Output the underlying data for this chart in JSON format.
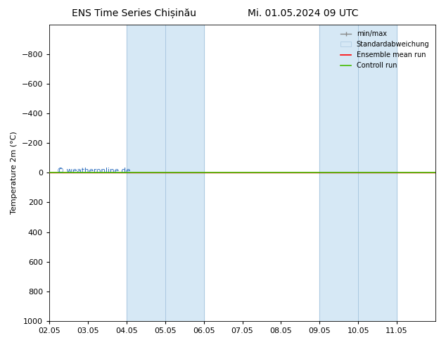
{
  "title_left": "ENS Time Series Chișinău",
  "title_right": "Mi. 01.05.2024 09 UTC",
  "ylabel": "Temperature 2m (°C)",
  "xlim": [
    0,
    10
  ],
  "ylim": [
    -1000,
    1000
  ],
  "yticks": [
    -800,
    -600,
    -400,
    -200,
    0,
    200,
    400,
    600,
    800,
    1000
  ],
  "xtick_labels": [
    "02.05",
    "03.05",
    "04.05",
    "05.05",
    "06.05",
    "07.05",
    "08.05",
    "09.05",
    "10.05",
    "11.05"
  ],
  "xtick_positions": [
    0,
    1,
    2,
    3,
    4,
    5,
    6,
    7,
    8,
    9
  ],
  "shade_regions": [
    [
      2.0,
      3.0
    ],
    [
      3.0,
      4.0
    ],
    [
      7.0,
      8.0
    ],
    [
      8.0,
      9.0
    ]
  ],
  "shade_colors": [
    "#d6e8f5",
    "#c0d8ee",
    "#d6e8f5",
    "#c0d8ee"
  ],
  "shade_edge_color": "#aac8e0",
  "green_line_y": 0,
  "red_line_y": 0,
  "green_color": "#44bb00",
  "red_color": "#ff0000",
  "minmax_color": "#888888",
  "legend_items": [
    "min/max",
    "Standardabweichung",
    "Ensemble mean run",
    "Controll run"
  ],
  "background_color": "#ffffff",
  "figsize": [
    6.34,
    4.9
  ],
  "dpi": 100,
  "watermark": "© weatheronline.de",
  "watermark_color": "#2266bb",
  "title_fontsize": 10,
  "axis_fontsize": 8
}
